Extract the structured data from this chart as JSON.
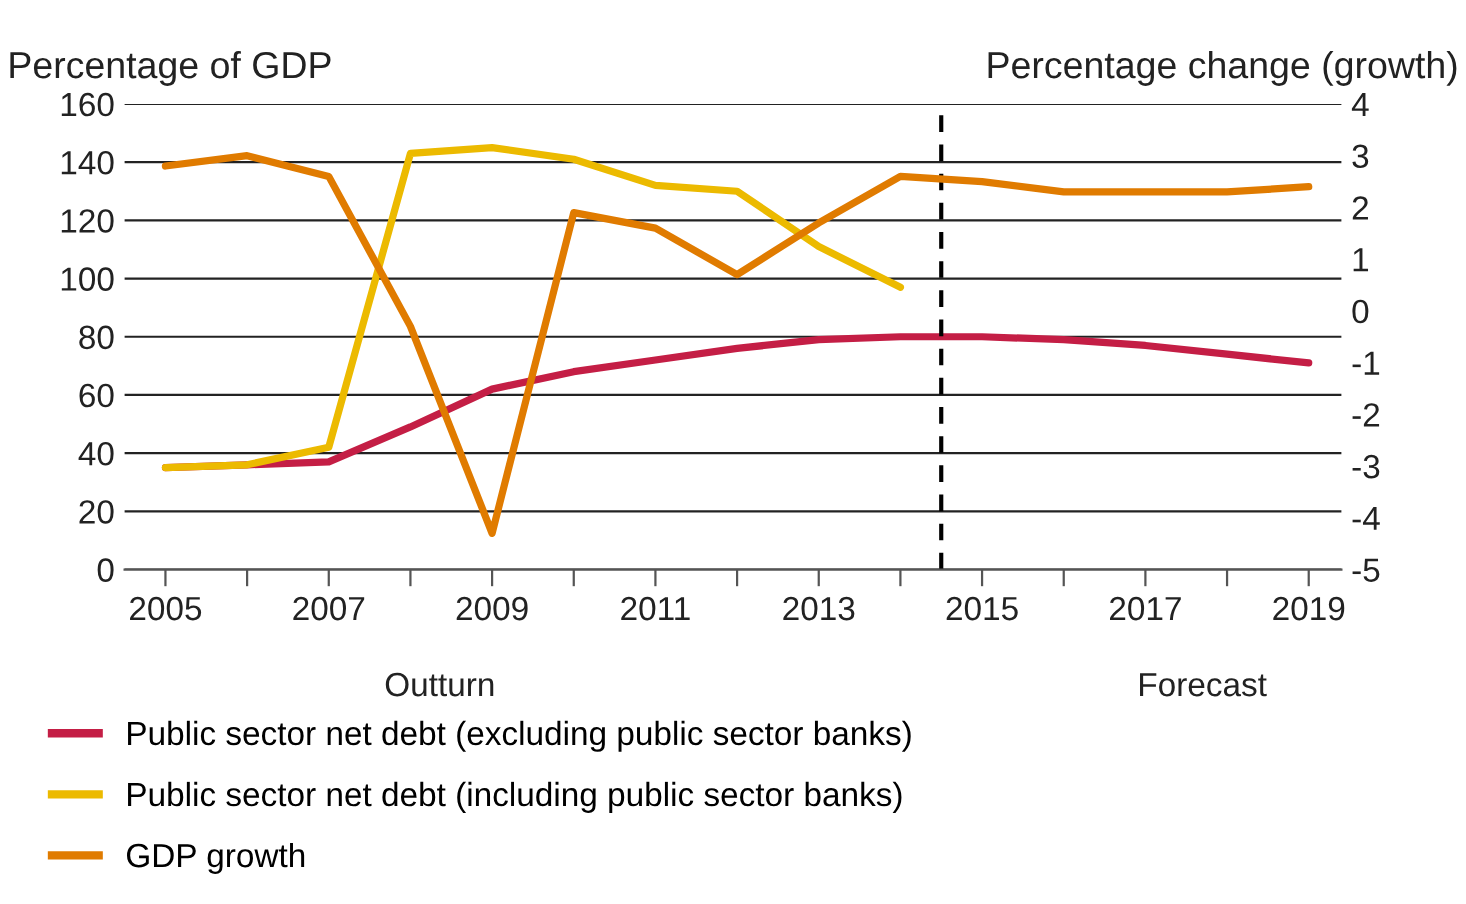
{
  "chart_data": {
    "type": "line",
    "ylabel": "Percentage of GDP",
    "y2label": "Percentage change (growth)",
    "x": [
      2005,
      2006,
      2007,
      2008,
      2009,
      2010,
      2011,
      2012,
      2013,
      2014,
      2015,
      2016,
      2017,
      2018,
      2019
    ],
    "series": [
      {
        "name": "Public sector net debt (excluding public sector banks)",
        "color": "#c41e45",
        "values": [
          35,
          36,
          37,
          49,
          62,
          68,
          72,
          76,
          79,
          80,
          80,
          79,
          77,
          74,
          71
        ]
      },
      {
        "name": "Public sector net debt (including public sector banks)",
        "color": "#ecba00",
        "values": [
          35,
          36,
          42,
          143,
          145,
          141,
          132,
          130,
          111,
          97,
          null,
          null,
          null,
          null,
          null
        ]
      },
      {
        "name": "GDP growth",
        "color": "#e07b00",
        "axis": "y2",
        "values": [
          2.8,
          3.0,
          2.6,
          -0.3,
          -4.3,
          1.9,
          1.6,
          0.7,
          1.7,
          2.6,
          2.5,
          2.3,
          2.3,
          2.3,
          2.4
        ]
      }
    ],
    "xlim": [
      2004.5,
      2019.4
    ],
    "xticks": [
      2005,
      {
        "value": 2006,
        "label": null
      },
      2007,
      {
        "value": 2008,
        "label": null
      },
      2009,
      {
        "value": 2010,
        "label": null
      },
      2011,
      {
        "value": 2012,
        "label": null
      },
      2013,
      {
        "value": 2014,
        "label": null
      },
      2015,
      {
        "value": 2016,
        "label": null
      },
      2017,
      {
        "value": 2018,
        "label": null
      },
      2019
    ],
    "ylim": [
      0,
      160
    ],
    "yticks": [
      0,
      20,
      40,
      60,
      80,
      100,
      120,
      140,
      160
    ],
    "y2lim": [
      -5,
      4
    ],
    "y2ticks": [
      -5,
      -4,
      -3,
      -2,
      -1,
      0,
      1,
      2,
      3,
      4
    ],
    "ref_lines": [
      {
        "axis": "x",
        "value": 2014.5,
        "color": "#000000",
        "line_style": "dashed"
      }
    ],
    "annotations": [
      "Outturn",
      "Forecast"
    ],
    "grid": "y",
    "legend": "bottom",
    "line_style": "solid",
    "marker": "none"
  }
}
